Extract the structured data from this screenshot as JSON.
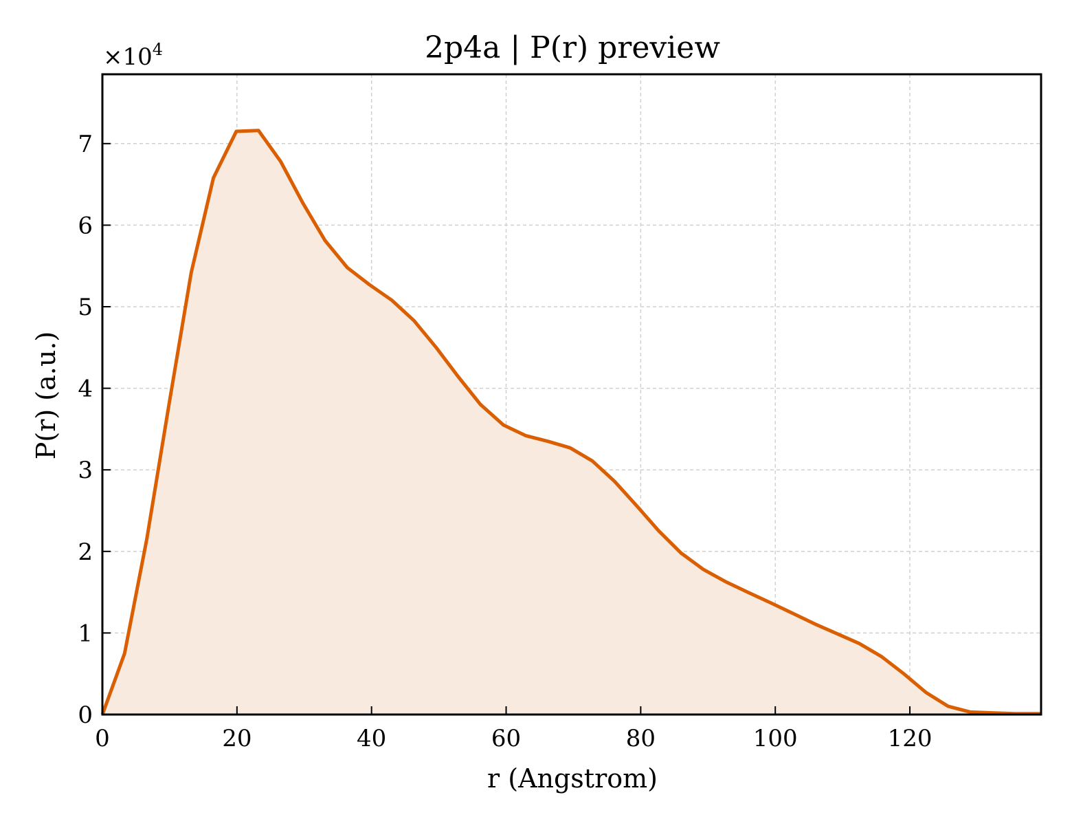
{
  "chart_data": {
    "type": "area",
    "title": "2p4a | P(r) preview",
    "xlabel": "r (Angstrom)",
    "ylabel": "P(r) (a.u.)",
    "y_scale_base": "×10",
    "y_scale_exponent": "4",
    "xlim": [
      0,
      139.5
    ],
    "ylim": [
      0,
      7.85
    ],
    "grid": true,
    "x_ticks": [
      0,
      20,
      40,
      60,
      80,
      100,
      120
    ],
    "y_ticks": [
      0,
      1,
      2,
      3,
      4,
      5,
      6,
      7
    ],
    "colors": {
      "line": "#d95f02",
      "fill": "#f9eadf"
    },
    "series": [
      {
        "x": [
          0,
          3.3,
          6.6,
          9.9,
          13.2,
          16.5,
          19.9,
          23.2,
          26.5,
          29.8,
          33.1,
          36.4,
          39.7,
          43.0,
          46.3,
          49.6,
          52.9,
          56.2,
          59.6,
          62.9,
          66.2,
          69.5,
          72.8,
          76.1,
          79.4,
          82.7,
          86.0,
          89.3,
          92.6,
          95.9,
          99.3,
          102.6,
          105.9,
          109.2,
          112.5,
          115.8,
          119.1,
          122.4,
          125.7,
          129.0,
          132.3,
          135.6,
          139.5
        ],
        "y": [
          0.0,
          0.75,
          2.15,
          3.8,
          5.42,
          6.58,
          7.15,
          7.16,
          6.78,
          6.27,
          5.81,
          5.48,
          5.27,
          5.08,
          4.83,
          4.5,
          4.14,
          3.8,
          3.55,
          3.42,
          3.35,
          3.27,
          3.11,
          2.86,
          2.56,
          2.25,
          1.98,
          1.78,
          1.63,
          1.5,
          1.37,
          1.24,
          1.11,
          0.99,
          0.87,
          0.71,
          0.5,
          0.27,
          0.1,
          0.03,
          0.02,
          0.01,
          0.01
        ]
      }
    ]
  }
}
